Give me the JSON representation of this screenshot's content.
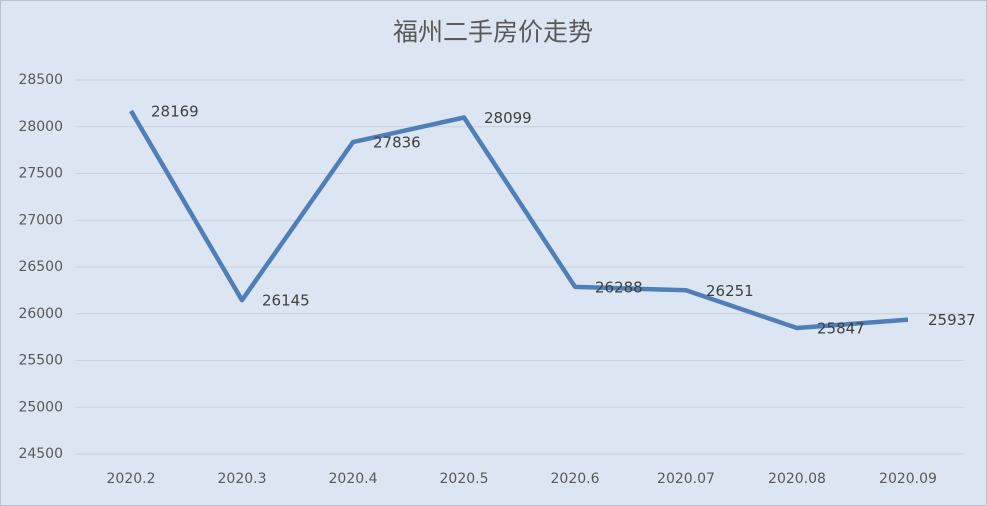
{
  "chart_data": {
    "type": "line",
    "title": "福州二手房价走势",
    "categories": [
      "2020.2",
      "2020.3",
      "2020.4",
      "2020.5",
      "2020.6",
      "2020.07",
      "2020.08",
      "2020.09"
    ],
    "values": [
      28169,
      26145,
      27836,
      28099,
      26288,
      26251,
      25847,
      25937
    ],
    "color": "#4f7fb8",
    "ylim": [
      24500,
      28500
    ],
    "yticks": [
      24500,
      25000,
      25500,
      26000,
      26500,
      27000,
      27500,
      28000,
      28500
    ],
    "grid": true
  }
}
